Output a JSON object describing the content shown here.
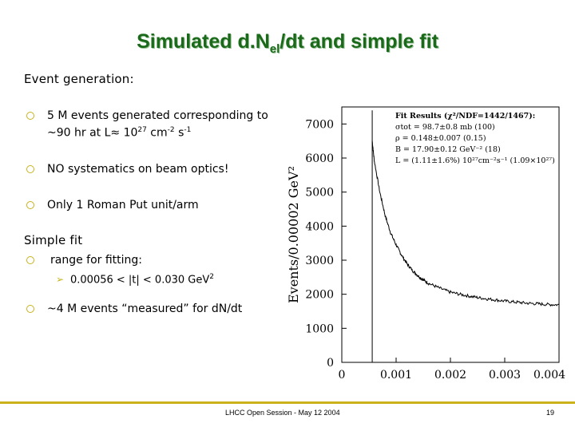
{
  "slide": {
    "title_main": "Simulated d.N",
    "title_sub": "el",
    "title_tail": "/dt and simple fit",
    "section1": "Event generation:",
    "bullets1": [
      {
        "line1": "5 M events generated corresponding to",
        "line2_pre": "~90 hr at L≈ 10",
        "exp1": "27",
        "mid": " cm",
        "exp2": "-2",
        "mid2": " s",
        "exp3": "-1"
      },
      {
        "line1": "NO systematics on beam optics!"
      },
      {
        "line1": "Only 1 Roman Put unit/arm"
      }
    ],
    "section2": "Simple fit",
    "bullet_range": "range for fitting:",
    "range_text": "0.00056 < |t| < 0.030 GeV",
    "range_exp": "2",
    "bullet_measured": "~4 M events “measured” for dN/dt",
    "footer": "LHCC Open Session - May 12 2004",
    "page_number": "19",
    "accent_color": "#c9b21a",
    "title_color": "#1a6a1a",
    "bullet_icon": "circle-bullet-icon",
    "sub_bullet_icon": "arrow-bullet-icon"
  },
  "chart_data": {
    "type": "line",
    "ylabel": "Events/0.00002 GeV²",
    "xlim": [
      0,
      0.004
    ],
    "ylim": [
      0,
      7500
    ],
    "x_ticks": [
      "0",
      "0.001",
      "0.002",
      "0.003",
      "0.004"
    ],
    "y_ticks": [
      "0",
      "1000",
      "2000",
      "3000",
      "4000",
      "5000",
      "6000",
      "7000"
    ],
    "fit_box": [
      "Fit Results (χ²/NDF=1442/1467):",
      "σtot = 98.7±0.8 mb          (100)",
      "ρ = 0.148±0.007              (0.15)",
      "B = 17.90±0.12 GeV⁻²           (18)",
      "L = (1.11±1.6%) 10²⁷cm⁻²s⁻¹  (1.09×10²⁷)"
    ],
    "series": [
      {
        "x": [
          0.00056,
          0.0006,
          0.0007,
          0.0008,
          0.0009,
          0.001,
          0.0011,
          0.0012,
          0.0013,
          0.0014,
          0.0015,
          0.0016,
          0.0018,
          0.002,
          0.0022,
          0.0024,
          0.0026,
          0.0028,
          0.003,
          0.0032,
          0.0034,
          0.0036,
          0.0038,
          0.004
        ],
        "y": [
          6500,
          5900,
          5000,
          4300,
          3800,
          3450,
          3150,
          2900,
          2700,
          2550,
          2420,
          2320,
          2180,
          2060,
          1990,
          1930,
          1880,
          1840,
          1800,
          1770,
          1740,
          1720,
          1700,
          1690
        ]
      }
    ]
  }
}
